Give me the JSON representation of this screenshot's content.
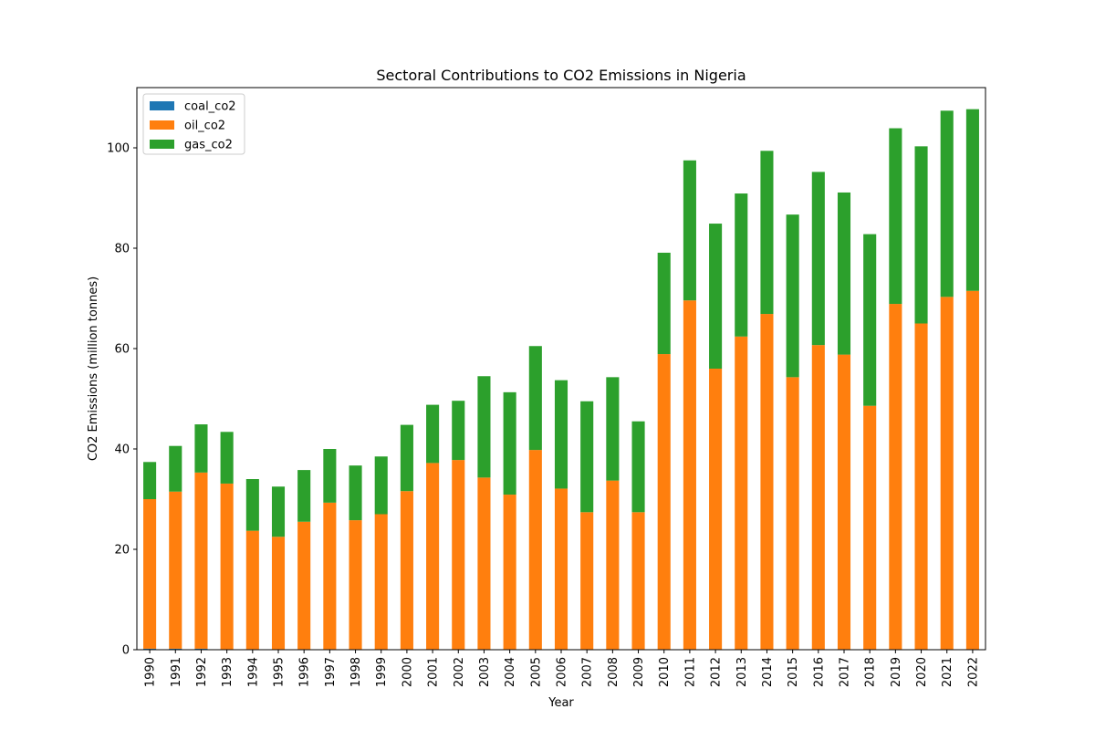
{
  "chart_data": {
    "type": "bar",
    "stacked": true,
    "title": "Sectoral Contributions to CO2 Emissions in Nigeria",
    "xlabel": "Year",
    "ylabel": "CO2 Emissions (million tonnes)",
    "ylim": [
      0,
      112
    ],
    "yticks": [
      0,
      20,
      40,
      60,
      80,
      100
    ],
    "grid": false,
    "legend_position": "top-left",
    "categories": [
      "1990",
      "1991",
      "1992",
      "1993",
      "1994",
      "1995",
      "1996",
      "1997",
      "1998",
      "1999",
      "2000",
      "2001",
      "2002",
      "2003",
      "2004",
      "2005",
      "2006",
      "2007",
      "2008",
      "2009",
      "2010",
      "2011",
      "2012",
      "2013",
      "2014",
      "2015",
      "2016",
      "2017",
      "2018",
      "2019",
      "2020",
      "2021",
      "2022"
    ],
    "series": [
      {
        "name": "coal_co2",
        "color": "#1f77b4",
        "values": [
          0.2,
          0.2,
          0.2,
          0.1,
          0.1,
          0.1,
          0.1,
          0.1,
          0.1,
          0.1,
          0.1,
          0.1,
          0.1,
          0.1,
          0.1,
          0.1,
          0.1,
          0.1,
          0.1,
          0.1,
          0.1,
          0.1,
          0.1,
          0.1,
          0.1,
          0.1,
          0.1,
          0.1,
          0.1,
          0.1,
          0.1,
          0.1,
          0.1
        ]
      },
      {
        "name": "oil_co2",
        "color": "#ff7f0e",
        "values": [
          29.8,
          31.3,
          35.1,
          33.0,
          23.6,
          22.4,
          25.4,
          29.2,
          25.7,
          26.9,
          31.5,
          37.1,
          37.7,
          34.2,
          30.8,
          39.7,
          32.0,
          27.3,
          33.6,
          27.3,
          58.8,
          69.5,
          55.9,
          62.3,
          66.8,
          54.2,
          60.6,
          58.7,
          48.5,
          68.8,
          64.9,
          70.2,
          71.4
        ]
      },
      {
        "name": "gas_co2",
        "color": "#2ca02c",
        "values": [
          7.4,
          9.1,
          9.6,
          10.3,
          10.3,
          10.0,
          10.3,
          10.7,
          10.9,
          11.5,
          13.2,
          11.6,
          11.8,
          20.2,
          20.4,
          20.7,
          21.6,
          22.1,
          20.6,
          18.1,
          20.2,
          27.9,
          28.9,
          28.5,
          32.5,
          32.4,
          34.5,
          32.3,
          34.2,
          35.0,
          35.3,
          37.1,
          36.2
        ]
      }
    ]
  }
}
